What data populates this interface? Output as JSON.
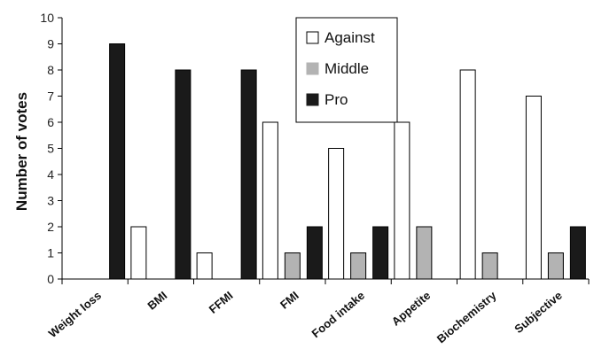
{
  "chart_data": {
    "type": "bar",
    "title": "",
    "xlabel": "",
    "ylabel": "Number of votes",
    "ylim": [
      0,
      10
    ],
    "yticks": [
      0,
      1,
      2,
      3,
      4,
      5,
      6,
      7,
      8,
      9,
      10
    ],
    "grid": false,
    "legend_position": "top-center",
    "categories": [
      "Weight loss",
      "BMI",
      "FFMI",
      "FMI",
      "Food intake",
      "Appetite",
      "Biochemistry",
      "Subjective"
    ],
    "series": [
      {
        "name": "Against",
        "color": "#ffffff",
        "values": [
          0,
          2,
          1,
          6,
          5,
          6,
          8,
          7
        ]
      },
      {
        "name": "Middle",
        "color": "#b3b3b3",
        "values": [
          0,
          0,
          0,
          1,
          1,
          2,
          1,
          1
        ]
      },
      {
        "name": "Pro",
        "color": "#1a1a1a",
        "values": [
          9,
          8,
          8,
          2,
          2,
          0,
          0,
          2
        ]
      }
    ]
  }
}
